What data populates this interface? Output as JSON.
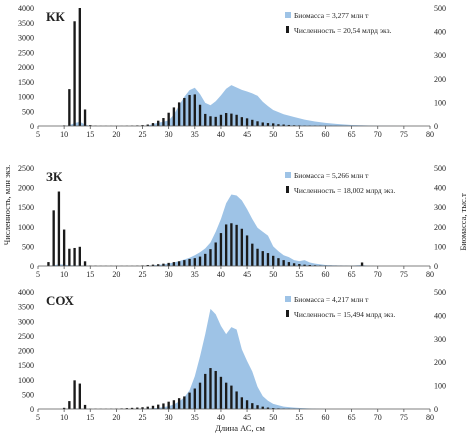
{
  "figure": {
    "xlabel": "Длина АС, см",
    "ylabel_left": "Численность, млн экз.",
    "ylabel_right": "Биомасса, тыс.т"
  },
  "chart_data": [
    {
      "type": "bar",
      "title": "КК",
      "x_range": [
        5,
        80
      ],
      "x_ticks": [
        5,
        10,
        15,
        20,
        25,
        30,
        35,
        40,
        45,
        50,
        55,
        60,
        65,
        70,
        75,
        80
      ],
      "y_left_range": [
        0,
        4000
      ],
      "y_left_ticks": [
        0,
        500,
        1000,
        1500,
        2000,
        2500,
        3000,
        3500,
        4000
      ],
      "y_right_range": [
        0,
        500
      ],
      "y_right_ticks": [
        0,
        100,
        200,
        300,
        400,
        500
      ],
      "colors": {
        "area": "#9ec3e6",
        "bars": "#1a1a1a"
      },
      "legend": [
        "Биомасса = 3,277 млн т",
        "Численность = 20,54 млрд экз."
      ],
      "series": [
        {
          "name": "Биомасса",
          "type": "area",
          "axis": "right",
          "x": [
            5,
            10,
            11,
            12,
            13,
            14,
            15,
            20,
            25,
            26,
            27,
            28,
            29,
            30,
            31,
            32,
            33,
            34,
            35,
            36,
            37,
            38,
            39,
            40,
            41,
            42,
            43,
            44,
            45,
            46,
            47,
            48,
            49,
            50,
            52,
            54,
            56,
            58,
            60,
            62,
            65,
            70,
            75,
            80
          ],
          "values": [
            0,
            0,
            3,
            12,
            18,
            6,
            0,
            0,
            0,
            2,
            8,
            14,
            18,
            24,
            48,
            88,
            124,
            152,
            162,
            135,
            98,
            88,
            105,
            130,
            158,
            173,
            163,
            153,
            146,
            138,
            128,
            103,
            84,
            68,
            50,
            38,
            27,
            19,
            13,
            9,
            4,
            1,
            0,
            0
          ]
        },
        {
          "name": "Численность",
          "type": "bar",
          "axis": "left",
          "x": [
            5,
            6,
            7,
            8,
            9,
            10,
            11,
            12,
            13,
            14,
            15,
            16,
            17,
            18,
            19,
            20,
            21,
            22,
            23,
            24,
            25,
            26,
            27,
            28,
            29,
            30,
            31,
            32,
            33,
            34,
            35,
            36,
            37,
            38,
            39,
            40,
            41,
            42,
            43,
            44,
            45,
            46,
            47,
            48,
            49,
            50,
            51,
            52,
            53,
            54,
            55,
            56,
            57,
            58,
            59,
            60,
            61,
            62,
            63,
            64,
            65,
            66,
            67,
            68,
            69,
            70,
            71,
            72,
            73,
            74,
            75,
            76,
            77,
            78,
            79,
            80
          ],
          "values": [
            0,
            0,
            0,
            0,
            0,
            20,
            1250,
            3550,
            4000,
            560,
            30,
            10,
            5,
            5,
            5,
            5,
            5,
            10,
            15,
            20,
            30,
            50,
            100,
            180,
            270,
            450,
            630,
            800,
            950,
            1050,
            1070,
            720,
            410,
            330,
            310,
            380,
            440,
            420,
            380,
            300,
            260,
            210,
            160,
            120,
            100,
            90,
            60,
            50,
            35,
            25,
            20,
            15,
            12,
            10,
            8,
            5,
            4,
            3,
            2,
            2,
            1,
            1,
            1,
            0,
            0,
            0,
            0,
            0,
            0,
            0,
            0,
            0,
            0,
            0,
            0,
            0
          ]
        }
      ]
    },
    {
      "type": "bar",
      "title": "ЗК",
      "x_range": [
        5,
        80
      ],
      "x_ticks": [
        5,
        10,
        15,
        20,
        25,
        30,
        35,
        40,
        45,
        50,
        55,
        60,
        65,
        70,
        75,
        80
      ],
      "y_left_range": [
        0,
        2500
      ],
      "y_left_ticks": [
        0,
        500,
        1000,
        1500,
        2000,
        2500
      ],
      "y_right_range": [
        0,
        500
      ],
      "y_right_ticks": [
        0,
        100,
        200,
        300,
        400,
        500
      ],
      "colors": {
        "area": "#9ec3e6",
        "bars": "#1a1a1a"
      },
      "legend": [
        "Биомасса = 5,266 млн т",
        "Численность = 18,002 млрд экз."
      ],
      "series": [
        {
          "name": "Биомасса",
          "type": "area",
          "axis": "right",
          "x": [
            5,
            7,
            8,
            9,
            10,
            11,
            12,
            13,
            14,
            15,
            20,
            25,
            27,
            29,
            30,
            31,
            32,
            33,
            34,
            35,
            36,
            37,
            38,
            39,
            40,
            41,
            42,
            43,
            44,
            45,
            46,
            47,
            48,
            49,
            50,
            51,
            52,
            53,
            54,
            55,
            56,
            57,
            58,
            60,
            62,
            65,
            67,
            68,
            70,
            75,
            80
          ],
          "values": [
            0,
            0,
            4,
            8,
            7,
            4,
            3,
            3,
            1,
            0,
            0,
            0,
            3,
            8,
            13,
            18,
            25,
            33,
            42,
            55,
            70,
            90,
            120,
            175,
            240,
            320,
            365,
            360,
            335,
            290,
            240,
            195,
            175,
            155,
            100,
            75,
            55,
            45,
            30,
            25,
            30,
            18,
            12,
            5,
            3,
            2,
            5,
            1,
            0,
            0,
            0
          ]
        },
        {
          "name": "Численность",
          "type": "bar",
          "axis": "left",
          "x": [
            5,
            6,
            7,
            8,
            9,
            10,
            11,
            12,
            13,
            14,
            15,
            16,
            17,
            18,
            19,
            20,
            21,
            22,
            23,
            24,
            25,
            26,
            27,
            28,
            29,
            30,
            31,
            32,
            33,
            34,
            35,
            36,
            37,
            38,
            39,
            40,
            41,
            42,
            43,
            44,
            45,
            46,
            47,
            48,
            49,
            50,
            51,
            52,
            53,
            54,
            55,
            56,
            57,
            58,
            59,
            60,
            61,
            62,
            63,
            64,
            65,
            66,
            67,
            68,
            69,
            70,
            71,
            72,
            73,
            74,
            75,
            76,
            77,
            78,
            79,
            80
          ],
          "values": [
            0,
            0,
            100,
            1420,
            1900,
            930,
            440,
            460,
            490,
            120,
            10,
            8,
            5,
            5,
            5,
            5,
            5,
            5,
            5,
            8,
            15,
            25,
            35,
            45,
            60,
            80,
            100,
            120,
            150,
            180,
            200,
            240,
            310,
            430,
            600,
            840,
            1060,
            1090,
            1050,
            950,
            780,
            570,
            440,
            380,
            330,
            260,
            200,
            150,
            100,
            70,
            50,
            35,
            25,
            18,
            12,
            8,
            5,
            4,
            3,
            2,
            2,
            2,
            90,
            1,
            1,
            0,
            0,
            0,
            0,
            0,
            0,
            0,
            0,
            0,
            0,
            0
          ]
        }
      ]
    },
    {
      "type": "bar",
      "title": "СОХ",
      "x_range": [
        5,
        80
      ],
      "x_ticks": [
        5,
        10,
        15,
        20,
        25,
        30,
        35,
        40,
        45,
        50,
        55,
        60,
        65,
        70,
        75,
        80
      ],
      "y_left_range": [
        0,
        4000
      ],
      "y_left_ticks": [
        0,
        500,
        1000,
        1500,
        2000,
        2500,
        3000,
        3500,
        4000
      ],
      "y_right_range": [
        0,
        500
      ],
      "y_right_ticks": [
        0,
        100,
        200,
        300,
        400,
        500
      ],
      "colors": {
        "area": "#9ec3e6",
        "bars": "#1a1a1a"
      },
      "legend": [
        "Биомасса = 4,217 млн т",
        "Численность = 15,494 млрд экз."
      ],
      "series": [
        {
          "name": "Биомасса",
          "type": "area",
          "axis": "right",
          "x": [
            5,
            10,
            11,
            12,
            13,
            14,
            15,
            20,
            24,
            26,
            28,
            30,
            31,
            32,
            33,
            34,
            35,
            36,
            37,
            38,
            39,
            40,
            41,
            42,
            43,
            44,
            45,
            46,
            47,
            48,
            49,
            50,
            52,
            54,
            56,
            58,
            60,
            65,
            70,
            75,
            80
          ],
          "values": [
            0,
            0,
            0,
            1,
            1,
            0,
            0,
            0,
            0,
            2,
            5,
            12,
            20,
            32,
            50,
            80,
            140,
            225,
            320,
            428,
            405,
            355,
            320,
            350,
            340,
            255,
            205,
            160,
            95,
            55,
            35,
            22,
            10,
            6,
            3,
            1,
            0,
            0,
            0,
            0,
            0
          ]
        },
        {
          "name": "Численность",
          "type": "bar",
          "axis": "left",
          "x": [
            5,
            6,
            7,
            8,
            9,
            10,
            11,
            12,
            13,
            14,
            15,
            16,
            17,
            18,
            19,
            20,
            21,
            22,
            23,
            24,
            25,
            26,
            27,
            28,
            29,
            30,
            31,
            32,
            33,
            34,
            35,
            36,
            37,
            38,
            39,
            40,
            41,
            42,
            43,
            44,
            45,
            46,
            47,
            48,
            49,
            50,
            51,
            52,
            53,
            54,
            55,
            56,
            57,
            58,
            59,
            60,
            61,
            62,
            63,
            64,
            65,
            66,
            67,
            68,
            69,
            70,
            71,
            72,
            73,
            74,
            75,
            76,
            77,
            78,
            79,
            80
          ],
          "values": [
            0,
            0,
            0,
            0,
            0,
            40,
            270,
            980,
            870,
            140,
            10,
            10,
            8,
            8,
            10,
            15,
            20,
            30,
            40,
            50,
            60,
            80,
            110,
            150,
            190,
            250,
            300,
            370,
            430,
            560,
            700,
            900,
            1200,
            1400,
            1300,
            1100,
            900,
            800,
            600,
            400,
            300,
            200,
            130,
            80,
            50,
            30,
            20,
            12,
            8,
            5,
            3,
            2,
            1,
            1,
            0,
            0,
            0,
            0,
            0,
            0,
            0,
            0,
            0,
            0,
            0,
            0,
            0,
            0,
            0,
            0,
            0,
            0,
            0,
            0,
            0,
            0
          ]
        }
      ]
    }
  ]
}
